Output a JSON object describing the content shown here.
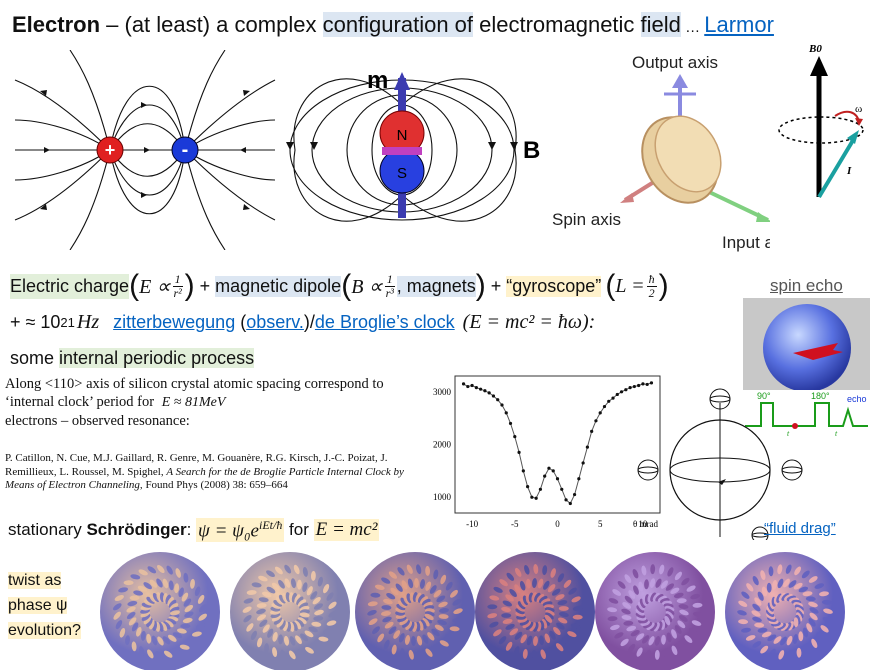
{
  "header": {
    "title_bold": "Electron",
    "title_dash": " – (at least) a complex ",
    "title_hl1": "configuration of",
    "title_mid": " electromagnetic ",
    "title_hl2": "field",
    "title_ellipsis": " … ",
    "title_link": "Larmor"
  },
  "figure_labels": {
    "magnet_m": "m",
    "magnet_b": "B",
    "magnet_n": "N",
    "magnet_s": "S",
    "output_axis": "Output axis",
    "spin_axis": "Spin axis",
    "input_axis": "Input axis",
    "larmor_b0": "B0",
    "larmor_omega": "ω",
    "larmor_i": "I",
    "echo_90": "90°",
    "echo_180": "180°",
    "echo_echo": "echo",
    "echo_t": "t"
  },
  "line1": {
    "electric_charge": "Electric charge",
    "e_expr": "E ∝",
    "e_num": "1",
    "e_den": "r²",
    "plus1": " + ",
    "magnetic_dipole": "magnetic dipole",
    "b_expr": "B ∝",
    "b_num": "1",
    "b_den": "r³",
    "magnets": ", magnets",
    "plus2": " + ",
    "gyroscope": "“gyroscope”",
    "l_expr": "L =",
    "l_num": "ħ",
    "l_den": "2",
    "spin_echo_link": "spin echo"
  },
  "line2": {
    "prefix": "+ ≈ 10",
    "exp": "21",
    "unit": "Hz",
    "zitter_link": "zitterbewegung",
    "open_paren": " (",
    "observ_link": "observ.",
    "close_slash": ")/",
    "debroglie_link": "de Broglie’s clock",
    "formula": "(E = mc² = ħω):"
  },
  "line3": {
    "prefix": "some ",
    "highlight": "internal periodic process"
  },
  "paragraph": {
    "text": "Along <110> axis of silicon crystal atomic spacing correspond to ‘internal clock’ period for",
    "energy": "E ≈ 81MeV",
    "text2": "electrons – observed resonance:"
  },
  "reference": {
    "authors": "P. Catillon,  N. Cue, M.J. Gaillard, R. Genre, M. Gouanère, R.G. Kirsch, J.-C. Poizat, J. Remillieux, L. Roussel, M. Spighel, ",
    "title": "A Search for the de Broglie Particle Internal Clock by Means of Electron Channeling,",
    "journal": " Found Phys (2008) 38: 659–664"
  },
  "chart_data": {
    "type": "scatter",
    "x": [
      -11,
      -10.5,
      -10,
      -9.5,
      -9,
      -8.5,
      -8,
      -7.5,
      -7,
      -6.5,
      -6,
      -5.5,
      -5,
      -4.5,
      -4,
      -3.5,
      -3,
      -2.5,
      -2,
      -1.5,
      -1,
      -0.5,
      0,
      0.5,
      1,
      1.5,
      2,
      2.5,
      3,
      3.5,
      4,
      4.5,
      5,
      5.5,
      6,
      6.5,
      7,
      7.5,
      8,
      8.5,
      9,
      9.5,
      10,
      10.5,
      11
    ],
    "y": [
      3150,
      3100,
      3120,
      3080,
      3050,
      3020,
      2980,
      2920,
      2850,
      2750,
      2600,
      2400,
      2150,
      1850,
      1500,
      1200,
      1000,
      980,
      1150,
      1400,
      1550,
      1500,
      1350,
      1150,
      950,
      880,
      1050,
      1350,
      1650,
      1950,
      2250,
      2450,
      2600,
      2720,
      2820,
      2880,
      2950,
      3000,
      3040,
      3080,
      3100,
      3120,
      3150,
      3140,
      3170
    ],
    "xticks": [
      "-10",
      "-5",
      "0",
      "5",
      "10"
    ],
    "yticks": [
      "1000",
      "2000",
      "3000"
    ],
    "xunit": "θ  mrad",
    "xlim": [
      -12,
      12
    ],
    "ylim": [
      700,
      3300
    ]
  },
  "fluid_drag_link": "“fluid drag”",
  "line4": {
    "prefix": "stationary ",
    "bold": "Schrödinger",
    "colon": ": ",
    "psi": "ψ = ψ₀e",
    "psi_exp": "iEt/ħ",
    "for": " for ",
    "emc": "E = mc²"
  },
  "twist": {
    "l1": "twist as",
    "l2": "phase ψ",
    "l3": "evolution?"
  },
  "colors": {
    "link": "#0563c1",
    "hl_blue": "#dce6f2",
    "hl_green": "#e2efda",
    "hl_yellow": "#fff2cc",
    "plus_charge": "#e02020",
    "minus_charge": "#1a3ad8",
    "echo_green": "#1a9c1a"
  }
}
